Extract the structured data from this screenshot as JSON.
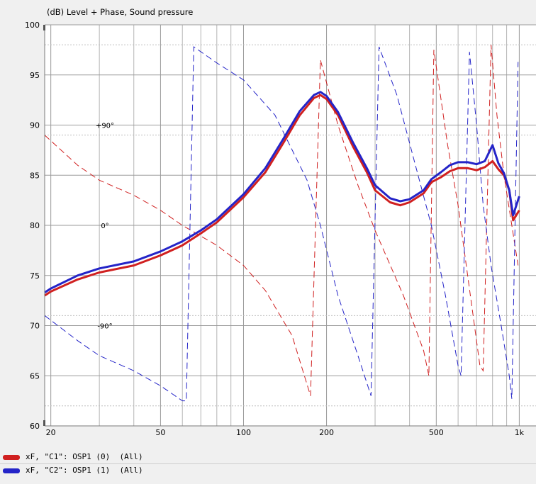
{
  "chart_data": {
    "type": "line",
    "title": "(dB)  Level + Phase, Sound pressure",
    "ylim": [
      60,
      100
    ],
    "xlim": [
      19,
      1150
    ],
    "x_scale": "log",
    "y_ticks": [
      60,
      65,
      70,
      75,
      80,
      85,
      90,
      95,
      100
    ],
    "x_tick_labels": [
      {
        "x": 20,
        "label": "20"
      },
      {
        "x": 50,
        "label": "50"
      },
      {
        "x": 100,
        "label": "100"
      },
      {
        "x": 200,
        "label": "200"
      },
      {
        "x": 500,
        "label": "500"
      },
      {
        "x": 1000,
        "label": "1k"
      }
    ],
    "phase_labels": [
      {
        "label": "+90°",
        "y": 90
      },
      {
        "label": "0°",
        "y": 80
      },
      {
        "label": "-90°",
        "y": 70
      }
    ],
    "grid": true,
    "series": [
      {
        "name": "xF, \"C1\": OSP1 (0)  (All)",
        "kind": "level",
        "color": "#d02020",
        "points": [
          [
            19,
            73
          ],
          [
            20,
            73.4
          ],
          [
            25,
            74.6
          ],
          [
            30,
            75.3
          ],
          [
            40,
            76.0
          ],
          [
            50,
            77.0
          ],
          [
            60,
            78.0
          ],
          [
            70,
            79.2
          ],
          [
            80,
            80.3
          ],
          [
            100,
            82.8
          ],
          [
            120,
            85.3
          ],
          [
            140,
            88.3
          ],
          [
            160,
            91.0
          ],
          [
            180,
            92.7
          ],
          [
            190,
            93.0
          ],
          [
            200,
            92.6
          ],
          [
            220,
            91.0
          ],
          [
            250,
            87.8
          ],
          [
            280,
            85.3
          ],
          [
            300,
            83.5
          ],
          [
            340,
            82.3
          ],
          [
            370,
            82.0
          ],
          [
            400,
            82.3
          ],
          [
            450,
            83.2
          ],
          [
            480,
            84.3
          ],
          [
            520,
            84.8
          ],
          [
            560,
            85.4
          ],
          [
            600,
            85.7
          ],
          [
            650,
            85.7
          ],
          [
            700,
            85.5
          ],
          [
            750,
            85.8
          ],
          [
            800,
            86.4
          ],
          [
            840,
            85.6
          ],
          [
            880,
            85.0
          ],
          [
            920,
            83.5
          ],
          [
            950,
            80.5
          ],
          [
            1000,
            81.5
          ]
        ]
      },
      {
        "name": "xF, \"C2\": OSP1 (1)  (All)",
        "kind": "level",
        "color": "#2424c8",
        "points": [
          [
            19,
            73.3
          ],
          [
            20,
            73.7
          ],
          [
            25,
            75.0
          ],
          [
            30,
            75.7
          ],
          [
            40,
            76.4
          ],
          [
            50,
            77.4
          ],
          [
            60,
            78.4
          ],
          [
            70,
            79.5
          ],
          [
            80,
            80.6
          ],
          [
            100,
            83.1
          ],
          [
            120,
            85.7
          ],
          [
            140,
            88.7
          ],
          [
            160,
            91.4
          ],
          [
            180,
            93.0
          ],
          [
            190,
            93.3
          ],
          [
            200,
            92.9
          ],
          [
            220,
            91.3
          ],
          [
            250,
            88.2
          ],
          [
            280,
            85.7
          ],
          [
            300,
            84.0
          ],
          [
            340,
            82.7
          ],
          [
            370,
            82.4
          ],
          [
            400,
            82.6
          ],
          [
            450,
            83.5
          ],
          [
            480,
            84.6
          ],
          [
            520,
            85.3
          ],
          [
            560,
            86.0
          ],
          [
            600,
            86.3
          ],
          [
            650,
            86.3
          ],
          [
            700,
            86.1
          ],
          [
            750,
            86.4
          ],
          [
            800,
            88.0
          ],
          [
            840,
            86.2
          ],
          [
            880,
            85.2
          ],
          [
            920,
            83.5
          ],
          [
            950,
            81.0
          ],
          [
            1000,
            82.9
          ]
        ]
      },
      {
        "name": "phase C1",
        "kind": "phase",
        "color": "#d02020",
        "points": [
          [
            19,
            89
          ],
          [
            25,
            86
          ],
          [
            30,
            84.5
          ],
          [
            40,
            83
          ],
          [
            50,
            81.5
          ],
          [
            60,
            80.0
          ],
          [
            80,
            78.0
          ],
          [
            100,
            76.0
          ],
          [
            120,
            73.5
          ],
          [
            150,
            69.0
          ],
          [
            175,
            63.0
          ],
          [
            190,
            96.5
          ],
          [
            220,
            90.0
          ],
          [
            260,
            84.0
          ],
          [
            300,
            79.5
          ],
          [
            380,
            73.0
          ],
          [
            450,
            67.5
          ],
          [
            470,
            65.0
          ],
          [
            490,
            97.5
          ],
          [
            550,
            88.0
          ],
          [
            600,
            82.0
          ],
          [
            650,
            75.0
          ],
          [
            720,
            66.0
          ],
          [
            740,
            65.5
          ],
          [
            790,
            98.0
          ],
          [
            830,
            91.0
          ],
          [
            880,
            85.0
          ],
          [
            940,
            80.0
          ],
          [
            990,
            76.0
          ]
        ]
      },
      {
        "name": "phase C2",
        "kind": "phase",
        "color": "#2424c8",
        "points": [
          [
            19,
            71
          ],
          [
            25,
            68.5
          ],
          [
            30,
            67
          ],
          [
            40,
            65.5
          ],
          [
            50,
            64
          ],
          [
            60,
            62.5
          ],
          [
            62,
            62.5
          ],
          [
            66,
            97.8
          ],
          [
            80,
            96.2
          ],
          [
            100,
            94.5
          ],
          [
            130,
            91.0
          ],
          [
            170,
            84.5
          ],
          [
            190,
            80.0
          ],
          [
            220,
            73.0
          ],
          [
            260,
            67.0
          ],
          [
            290,
            63.0
          ],
          [
            310,
            97.8
          ],
          [
            360,
            93.0
          ],
          [
            420,
            86.0
          ],
          [
            480,
            80.0
          ],
          [
            540,
            73.0
          ],
          [
            600,
            66.0
          ],
          [
            615,
            65.0
          ],
          [
            660,
            97.3
          ],
          [
            700,
            90.0
          ],
          [
            740,
            82.0
          ],
          [
            790,
            76.0
          ],
          [
            860,
            70.0
          ],
          [
            920,
            65.0
          ],
          [
            940,
            62.7
          ],
          [
            990,
            96.3
          ]
        ]
      }
    ]
  },
  "legend": [
    {
      "label": "xF, \"C1\": OSP1 (0)  (All)",
      "color": "#d02020"
    },
    {
      "label": "xF, \"C2\": OSP1 (1)  (All)",
      "color": "#2424c8"
    }
  ]
}
